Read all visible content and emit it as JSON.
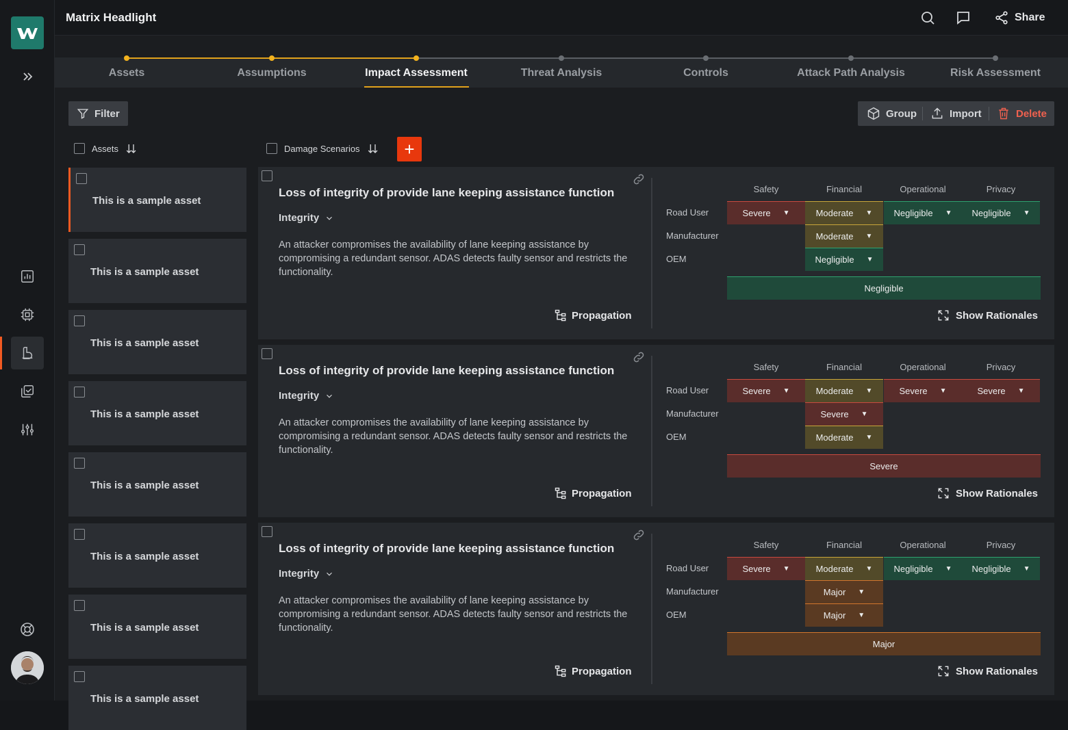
{
  "app": {
    "title": "Matrix Headlight",
    "share_label": "Share"
  },
  "icons": {
    "search": "search-icon",
    "comment": "comment-icon",
    "share": "share-icon"
  },
  "colors": {
    "accent": "#f15a22",
    "step_done": "#f2b21e",
    "add": "#e8380d",
    "severe": "#5a2d2b",
    "moderate": "#524a29",
    "negligible": "#1f4a3a",
    "major": "#5a3a22",
    "delete": "#f0614f"
  },
  "steps": [
    {
      "label": "Assets",
      "state": "done"
    },
    {
      "label": "Assumptions",
      "state": "done"
    },
    {
      "label": "Impact Assessment",
      "state": "active"
    },
    {
      "label": "Threat Analysis",
      "state": "todo"
    },
    {
      "label": "Controls",
      "state": "todo"
    },
    {
      "label": "Attack Path Analysis",
      "state": "todo"
    },
    {
      "label": "Risk Assessment",
      "state": "todo"
    }
  ],
  "toolbar": {
    "filter_label": "Filter",
    "group_label": "Group",
    "import_label": "Import",
    "delete_label": "Delete"
  },
  "columns": {
    "assets_label": "Assets",
    "scenarios_label": "Damage Scenarios"
  },
  "assets": [
    "This is a sample asset",
    "This is a sample asset",
    "This is a sample asset",
    "This is a sample asset",
    "This is a sample asset",
    "This is a sample asset",
    "This is a sample asset",
    "This is a sample asset"
  ],
  "matrix_headers": [
    "Safety",
    "Financial",
    "Operational",
    "Privacy"
  ],
  "matrix_rows": [
    "Road User",
    "Manufacturer",
    "OEM"
  ],
  "scenarios": [
    {
      "title": "Loss of integrity of provide lane keeping assistance function",
      "category": "Integrity",
      "description": "An attacker compromises the availability of lane keeping assistance by compromising a redundant sensor. ADAS detects faulty sensor and restricts the functionality.",
      "propagation_label": "Propagation",
      "rationales_label": "Show Rationales",
      "road_user": [
        "Severe",
        "Moderate",
        "Negligible",
        "Negligible"
      ],
      "manufacturer": "Moderate",
      "oem": "Negligible",
      "overall": "Negligible"
    },
    {
      "title": "Loss of integrity of provide lane keeping assistance function",
      "category": "Integrity",
      "description": "An attacker compromises the availability of lane keeping assistance by compromising a redundant sensor. ADAS detects faulty sensor and restricts the functionality.",
      "propagation_label": "Propagation",
      "rationales_label": "Show Rationales",
      "road_user": [
        "Severe",
        "Moderate",
        "Severe",
        "Severe"
      ],
      "manufacturer": "Severe",
      "oem": "Moderate",
      "overall": "Severe"
    },
    {
      "title": "Loss of integrity of provide lane keeping assistance function",
      "category": "Integrity",
      "description": "An attacker compromises the availability of lane keeping assistance by compromising a redundant sensor. ADAS detects faulty sensor and restricts the functionality.",
      "propagation_label": "Propagation",
      "rationales_label": "Show Rationales",
      "road_user": [
        "Severe",
        "Moderate",
        "Negligible",
        "Negligible"
      ],
      "manufacturer": "Major",
      "oem": "Major",
      "overall": "Major"
    }
  ]
}
